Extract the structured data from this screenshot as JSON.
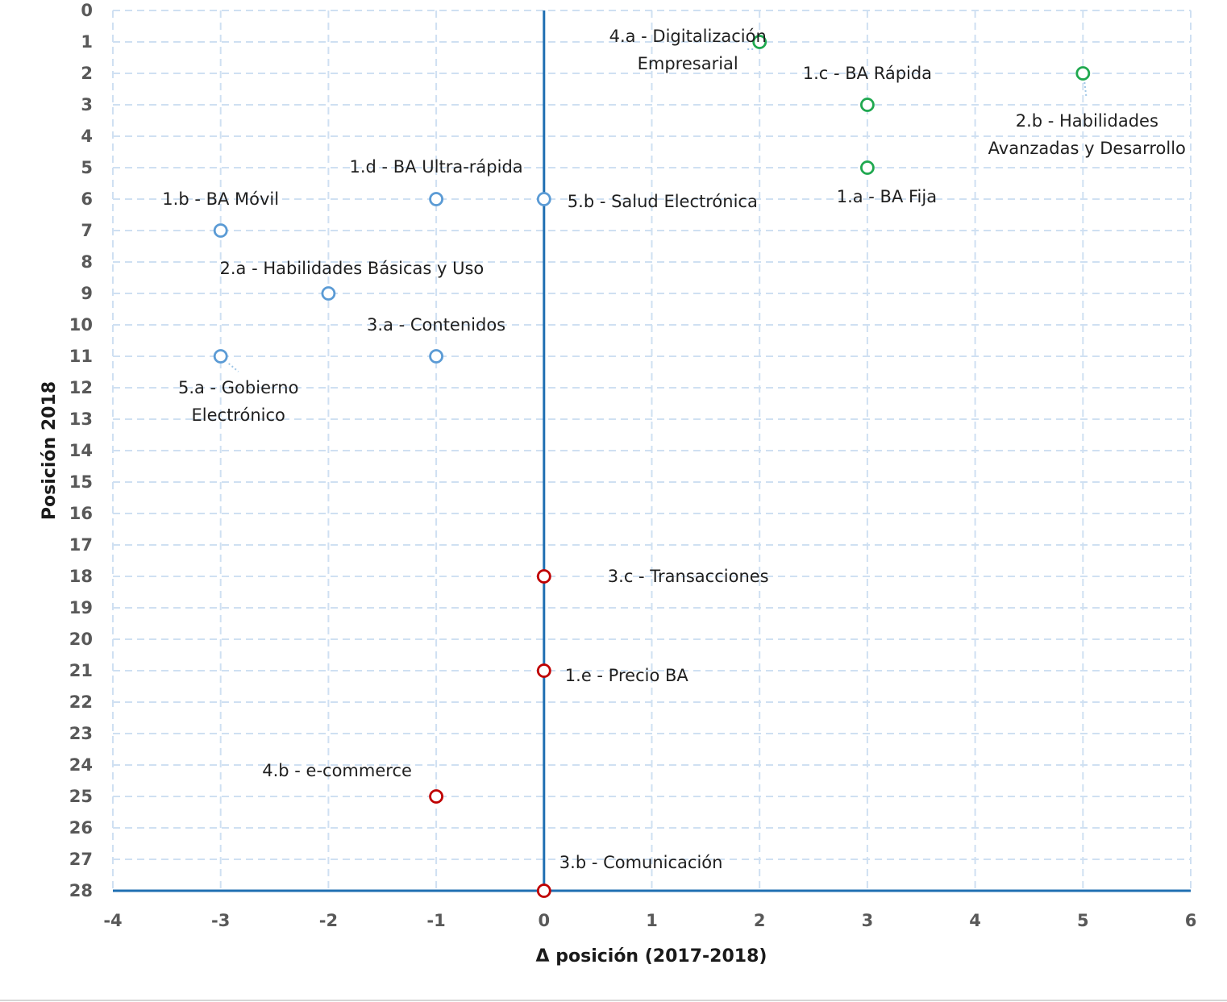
{
  "chart_data": {
    "type": "scatter",
    "title": "",
    "xlabel": "Δ posición (2017-2018)",
    "ylabel": "Posición 2018",
    "xlim": [
      -4,
      6
    ],
    "ylim": [
      0,
      28
    ],
    "y_inverted": true,
    "grid": true,
    "x_ticks": [
      "-4",
      "-3",
      "-2",
      "-1",
      "0",
      "1",
      "2",
      "3",
      "4",
      "5",
      "6"
    ],
    "y_ticks": [
      "0",
      "1",
      "2",
      "3",
      "4",
      "5",
      "6",
      "7",
      "8",
      "9",
      "10",
      "11",
      "12",
      "13",
      "14",
      "15",
      "16",
      "17",
      "18",
      "19",
      "20",
      "21",
      "22",
      "23",
      "24",
      "25",
      "26",
      "27",
      "28"
    ],
    "colors": {
      "green": "#1fa84f",
      "blue": "#5b9bd5",
      "red": "#c00000",
      "axis": "#1f6fb2",
      "grid": "#cfe0f2"
    },
    "points": [
      {
        "id": "4a",
        "label": [
          "4.a - Digitalización",
          "Empresarial"
        ],
        "x": 2,
        "y": 1,
        "group": "green"
      },
      {
        "id": "1c",
        "label": [
          "1.c - BA Rápida"
        ],
        "x": 3,
        "y": 3,
        "group": "green"
      },
      {
        "id": "2b",
        "label": [
          "2.b - Habilidades",
          "Avanzadas y Desarrollo"
        ],
        "x": 5,
        "y": 2,
        "group": "green"
      },
      {
        "id": "1a",
        "label": [
          "1.a - BA Fija"
        ],
        "x": 3,
        "y": 5,
        "group": "green"
      },
      {
        "id": "1d",
        "label": [
          "1.d - BA Ultra-rápida"
        ],
        "x": -1,
        "y": 6,
        "group": "blue"
      },
      {
        "id": "5b",
        "label": [
          "5.b - Salud Electrónica"
        ],
        "x": 0,
        "y": 6,
        "group": "blue"
      },
      {
        "id": "1b",
        "label": [
          "1.b - BA Móvil"
        ],
        "x": -3,
        "y": 7,
        "group": "blue"
      },
      {
        "id": "2a",
        "label": [
          "2.a - Habilidades Básicas y Uso"
        ],
        "x": -2,
        "y": 9,
        "group": "blue"
      },
      {
        "id": "3a",
        "label": [
          "3.a - Contenidos"
        ],
        "x": -1,
        "y": 11,
        "group": "blue"
      },
      {
        "id": "5a",
        "label": [
          "5.a - Gobierno",
          "Electrónico"
        ],
        "x": -3,
        "y": 11,
        "group": "blue"
      },
      {
        "id": "3c",
        "label": [
          "3.c - Transacciones"
        ],
        "x": 0,
        "y": 18,
        "group": "red"
      },
      {
        "id": "1e",
        "label": [
          "1.e - Precio BA"
        ],
        "x": 0,
        "y": 21,
        "group": "red"
      },
      {
        "id": "4b",
        "label": [
          "4.b - e-commerce"
        ],
        "x": -1,
        "y": 25,
        "group": "red"
      },
      {
        "id": "3b",
        "label": [
          "3.b - Comunicación"
        ],
        "x": 0,
        "y": 28,
        "group": "red"
      }
    ]
  }
}
